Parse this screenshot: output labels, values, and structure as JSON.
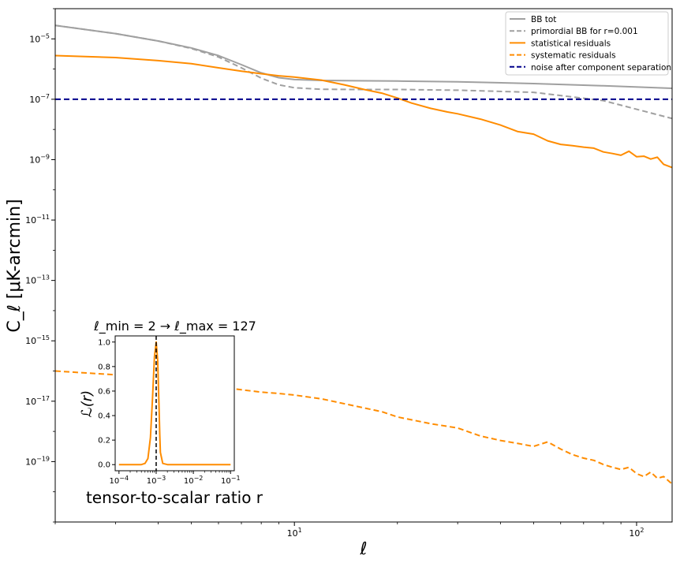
{
  "chart_data": [
    {
      "type": "line",
      "xlabel": "ℓ",
      "ylabel": "C_ℓ [μK-arcmin]",
      "xscale": "log",
      "yscale": "log",
      "xlim": [
        2,
        127
      ],
      "ylim": [
        1e-21,
        0.0001
      ],
      "x_ticks": [
        {
          "value": 10,
          "base": "10",
          "exp": "1"
        },
        {
          "value": 100,
          "base": "10",
          "exp": "2"
        }
      ],
      "y_ticks": [
        {
          "value": 1e-05,
          "base": "10",
          "exp": "−5"
        },
        {
          "value": 1e-07,
          "base": "10",
          "exp": "−7"
        },
        {
          "value": 1e-09,
          "base": "10",
          "exp": "−9"
        },
        {
          "value": 1e-11,
          "base": "10",
          "exp": "−11"
        },
        {
          "value": 1e-13,
          "base": "10",
          "exp": "−13"
        },
        {
          "value": 1e-15,
          "base": "10",
          "exp": "−15"
        },
        {
          "value": 1e-17,
          "base": "10",
          "exp": "−17"
        },
        {
          "value": 1e-19,
          "base": "10",
          "exp": "−19"
        }
      ],
      "legend_position": "top-right",
      "series": [
        {
          "name": "BB tot",
          "color": "#a0a0a0",
          "style": "solid",
          "x": [
            2,
            3,
            4,
            5,
            6,
            7,
            8,
            9,
            10,
            12,
            15,
            20,
            30,
            50,
            80,
            127
          ],
          "y": [
            2.8e-05,
            1.5e-05,
            8.5e-06,
            5e-06,
            2.8e-06,
            1.4e-06,
            7.5e-07,
            5.2e-07,
            4.5e-07,
            4.2e-07,
            4.1e-07,
            4e-07,
            3.8e-07,
            3.3e-07,
            2.8e-07,
            2.3e-07
          ]
        },
        {
          "name": "primordial BB for r=0.001",
          "color": "#a0a0a0",
          "style": "dashed",
          "x": [
            2,
            3,
            4,
            5,
            6,
            7,
            8,
            9,
            10,
            12,
            15,
            20,
            30,
            50,
            80,
            127
          ],
          "y": [
            2.8e-05,
            1.5e-05,
            8.5e-06,
            4.8e-06,
            2.5e-06,
            1.1e-06,
            5e-07,
            3e-07,
            2.4e-07,
            2.15e-07,
            2.1e-07,
            2.1e-07,
            2e-07,
            1.7e-07,
            9e-08,
            2.3e-08
          ]
        },
        {
          "name": "statistical residuals",
          "color": "#ff8c00",
          "style": "solid",
          "x": [
            2,
            3,
            4,
            5,
            6,
            7,
            8,
            9,
            10,
            12,
            14,
            16,
            18,
            20,
            22,
            25,
            28,
            30,
            35,
            40,
            45,
            50,
            55,
            60,
            65,
            70,
            75,
            80,
            85,
            90,
            95,
            100,
            105,
            110,
            115,
            120,
            127
          ],
          "y": [
            2.8e-06,
            2.4e-06,
            1.9e-06,
            1.5e-06,
            1.1e-06,
            8.5e-07,
            7e-07,
            6e-07,
            5.4e-07,
            4.3e-07,
            3e-07,
            2.1e-07,
            1.6e-07,
            1.1e-07,
            7.5e-08,
            5e-08,
            3.8e-08,
            3.3e-08,
            2.2e-08,
            1.4e-08,
            8.5e-09,
            7e-09,
            4.2e-09,
            3.2e-09,
            2.9e-09,
            2.6e-09,
            2.4e-09,
            1.8e-09,
            1.6e-09,
            1.4e-09,
            1.9e-09,
            1.25e-09,
            1.3e-09,
            1.05e-09,
            1.2e-09,
            7e-10,
            5.5e-10
          ]
        },
        {
          "name": "systematic residuals",
          "color": "#ff8c00",
          "style": "dashed",
          "x": [
            2,
            3,
            4,
            5,
            6,
            7,
            8,
            9,
            10,
            12,
            15,
            18,
            20,
            25,
            30,
            35,
            40,
            45,
            50,
            55,
            60,
            65,
            70,
            75,
            80,
            85,
            90,
            95,
            100,
            105,
            110,
            115,
            120,
            127
          ],
          "y": [
            1e-16,
            7.5e-17,
            5.5e-17,
            4e-17,
            3e-17,
            2.4e-17,
            2e-17,
            1.8e-17,
            1.6e-17,
            1.2e-17,
            7e-18,
            4.5e-18,
            3e-18,
            1.8e-18,
            1.3e-18,
            7e-19,
            5e-19,
            4e-19,
            3.2e-19,
            4.5e-19,
            2.6e-19,
            1.7e-19,
            1.3e-19,
            1.1e-19,
            8e-20,
            6.5e-20,
            5.5e-20,
            6.5e-20,
            4e-20,
            3.2e-20,
            4.5e-20,
            2.8e-20,
            3.2e-20,
            1.8e-20
          ]
        },
        {
          "name": "noise after component separation",
          "color": "#00008b",
          "style": "dashed",
          "x": [
            2,
            127
          ],
          "y": [
            1e-07,
            1e-07
          ]
        }
      ]
    },
    {
      "type": "line",
      "title": "ℓ_min = 2 → ℓ_max = 127",
      "xlabel": "tensor-to-scalar ratio r",
      "ylabel": "ℒ(r)",
      "xscale": "log",
      "xlim": [
        7.9e-05,
        0.126
      ],
      "ylim": [
        -0.05,
        1.05
      ],
      "x_ticks": [
        {
          "value": 0.0001,
          "base": "10",
          "exp": "−4"
        },
        {
          "value": 0.001,
          "base": "10",
          "exp": "−3"
        },
        {
          "value": 0.01,
          "base": "10",
          "exp": "−2"
        },
        {
          "value": 0.1,
          "base": "10",
          "exp": "−1"
        }
      ],
      "y_ticks": [
        "0.0",
        "0.2",
        "0.4",
        "0.6",
        "0.8",
        "1.0"
      ],
      "peak_r": 0.001,
      "vline_r": 0.001,
      "series": [
        {
          "color": "#ff8c00",
          "x": [
            0.0001,
            0.0004,
            0.0005,
            0.0006,
            0.0007,
            0.0008,
            0.0009,
            0.001,
            0.0011,
            0.0012,
            0.00125,
            0.0013,
            0.0015,
            0.002,
            0.01,
            0.1
          ],
          "y": [
            0.0,
            0.0,
            0.01,
            0.05,
            0.22,
            0.55,
            0.88,
            1.0,
            0.85,
            0.45,
            0.25,
            0.1,
            0.01,
            0.0,
            0.0,
            0.0
          ]
        }
      ]
    }
  ]
}
